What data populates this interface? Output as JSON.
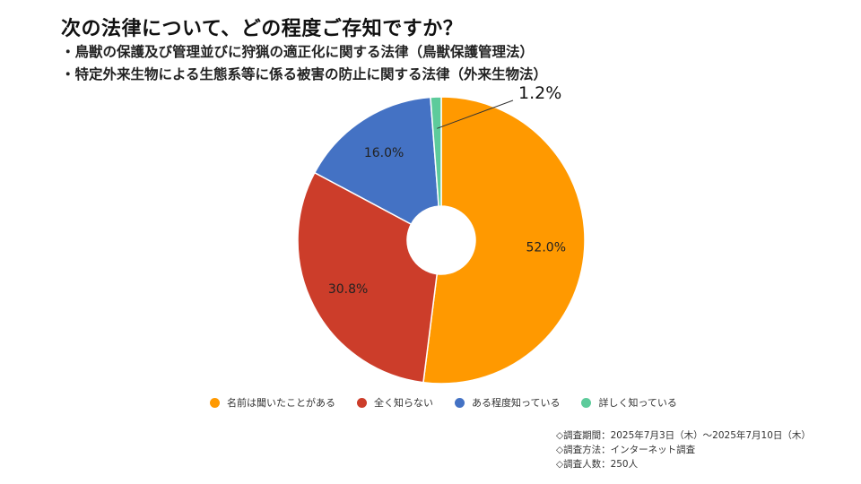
{
  "header": {
    "title": "次の法律について、どの程度ご存知ですか？",
    "subtitle_1": "・鳥獣の保護及び管理並びに狩猟の適正化に関する法律（鳥獣保護管理法）",
    "subtitle_2": "・特定外来生物による生態系等に係る被害の防止に関する法律（外来生物法）"
  },
  "chart_data": {
    "type": "pie",
    "donut": true,
    "categories": [
      "名前は聞いたことがある",
      "全く知らない",
      "ある程度知っている",
      "詳しく知っている"
    ],
    "values": [
      52.0,
      30.8,
      16.0,
      1.2
    ],
    "value_labels": [
      "52.0%",
      "30.8%",
      "16.0%",
      "1.2%"
    ],
    "colors": [
      "#FF9900",
      "#CC3D2A",
      "#4472C4",
      "#5DCB9B"
    ],
    "legend_placement": "bottom"
  },
  "footer": {
    "line_1": "◇調査期間：2025年7月3日（木）～2025年7月10日（木）",
    "line_2": "◇調査方法：インターネット調査",
    "line_3": "◇調査人数：250人"
  }
}
